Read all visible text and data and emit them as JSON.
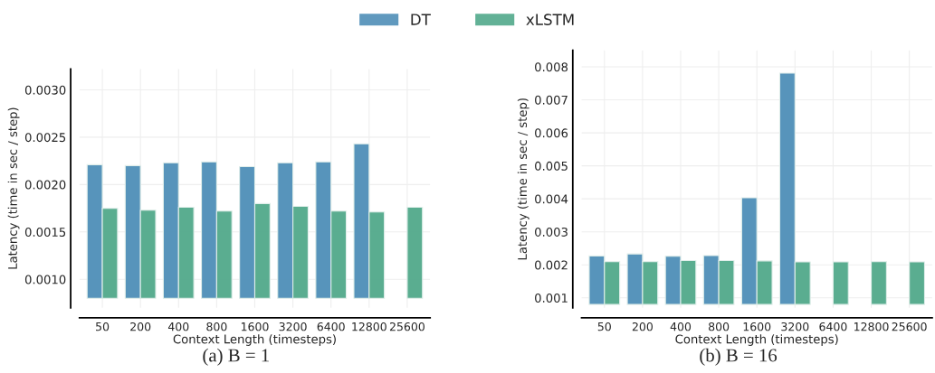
{
  "chart_data": [
    {
      "type": "bar",
      "xlabel": "Context Length (timesteps)",
      "ylabel": "Latency (time in sec / step)",
      "categories": [
        "50",
        "200",
        "400",
        "800",
        "1600",
        "3200",
        "6400",
        "12800",
        "25600"
      ],
      "series": [
        {
          "name": "DT",
          "color": "#4f8fb8",
          "base": [
            0.0008,
            0.0008,
            0.0008,
            0.0008,
            0.0008,
            0.0008,
            0.0008,
            0.0008,
            null
          ],
          "values": [
            0.00141,
            0.0014,
            0.00143,
            0.00144,
            0.00139,
            0.00143,
            0.00144,
            0.00163,
            null
          ]
        },
        {
          "name": "xLSTM",
          "color": "#52a98b",
          "base": [
            0.0008,
            0.0008,
            0.0008,
            0.0008,
            0.0008,
            0.0008,
            0.0008,
            0.0008,
            0.0008
          ],
          "values": [
            0.00095,
            0.00093,
            0.00096,
            0.00092,
            0.001,
            0.00097,
            0.00092,
            0.00091,
            0.00096
          ]
        }
      ],
      "ylim": [
        0.0007,
        0.00322
      ],
      "yticks": [
        {
          "value": 0.001,
          "label": "0.0010"
        },
        {
          "value": 0.0015,
          "label": "0.0015"
        },
        {
          "value": 0.002,
          "label": "0.0020"
        },
        {
          "value": 0.0025,
          "label": "0.0025"
        },
        {
          "value": 0.003,
          "label": "0.0030"
        }
      ],
      "grid": true,
      "legend": "top",
      "annotations": [
        "(a) B = 1"
      ]
    },
    {
      "type": "bar",
      "xlabel": "Context Length (timesteps)",
      "ylabel": "Latency (time in sec / step)",
      "categories": [
        "50",
        "200",
        "400",
        "800",
        "1600",
        "3200",
        "6400",
        "12800",
        "25600"
      ],
      "series": [
        {
          "color": "#4f8fb8",
          "base": [
            0.0008,
            0.0008,
            0.0008,
            0.0008,
            0.0008,
            0.0008,
            null,
            null,
            null
          ],
          "values": [
            0.00147,
            0.00153,
            0.00146,
            0.00148,
            0.00323,
            0.00701,
            null,
            null,
            null
          ]
        },
        {
          "color": "#52a98b",
          "base": [
            0.0008,
            0.0008,
            0.0008,
            0.0008,
            0.0008,
            0.0008,
            0.0008,
            0.0008,
            0.0008
          ],
          "values": [
            0.0013,
            0.0013,
            0.00133,
            0.00133,
            0.00132,
            0.00129,
            0.00129,
            0.0013,
            0.00129
          ]
        }
      ],
      "ylim": [
        0.0007,
        0.0085
      ],
      "yticks": [
        0.001,
        0.002,
        0.003,
        0.004,
        0.005,
        0.006,
        0.007,
        0.008
      ],
      "grid": true,
      "annotations": [
        "(b) B = 16"
      ]
    }
  ]
}
